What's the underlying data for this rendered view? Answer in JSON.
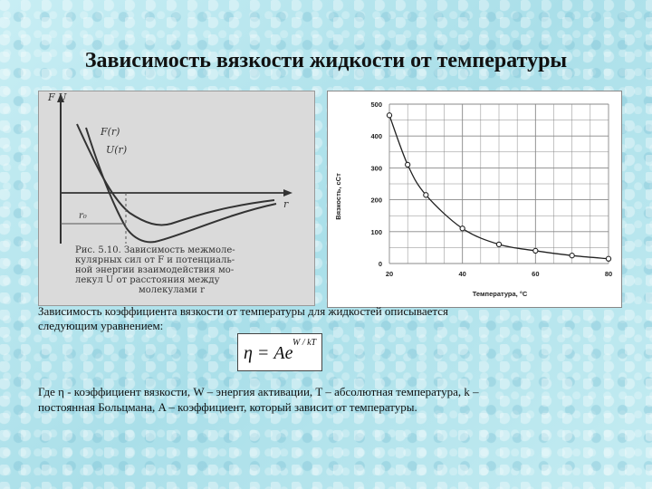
{
  "title": "Зависимость вязкости жидкости от температуры",
  "left_figure": {
    "axis_y_labels": "F U",
    "axis_x_label": "r",
    "curve_F_label": "F(r)",
    "curve_U_label": "U(r)",
    "r0_label": "r₀",
    "caption_lines": [
      "Рис. 5.10. Зависимость межмоле-",
      "кулярных сил от F и потенциаль-",
      "ной энергии взаимодействия мо-",
      "лекул U от расстояния между",
      "молекулами r"
    ]
  },
  "chart_data": {
    "type": "line",
    "x": [
      20,
      25,
      30,
      40,
      50,
      60,
      70,
      80
    ],
    "y": [
      465,
      310,
      215,
      110,
      60,
      40,
      25,
      15
    ],
    "xlabel": "Температура, °C",
    "ylabel": "Вязкость, сСт",
    "xticks": [
      20,
      40,
      60,
      80
    ],
    "yticks": [
      0,
      100,
      200,
      300,
      400,
      500
    ],
    "xlim": [
      20,
      80
    ],
    "ylim": [
      0,
      500
    ],
    "grid": true,
    "line_color": "#222222",
    "marker": "open-circle"
  },
  "caption": {
    "line1": "Зависимость коэффициента вязкости от температуры для жидкостей описывается",
    "line2": "следующим уравнением:"
  },
  "formula": {
    "main": "η = Ae",
    "exponent": "W / kT"
  },
  "description": {
    "line1": "Где η - коэффициент вязкости, W – энергия активации, T – абсолютная температура, k –",
    "line2": "постоянная Больцмана, A – коэффициент, который зависит от температуры."
  }
}
